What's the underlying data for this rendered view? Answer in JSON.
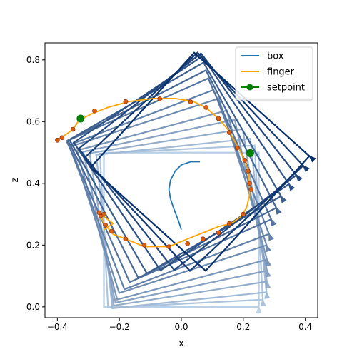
{
  "chart_data": {
    "type": "line",
    "xlabel": "x",
    "ylabel": "z",
    "xlim": [
      -0.44,
      0.44
    ],
    "ylim": [
      -0.035,
      0.855
    ],
    "xticks": [
      {
        "value": -0.4,
        "label": "−0.4"
      },
      {
        "value": -0.2,
        "label": "−0.2"
      },
      {
        "value": 0.0,
        "label": "0.0"
      },
      {
        "value": 0.2,
        "label": "0.2"
      },
      {
        "value": 0.4,
        "label": "0.4"
      }
    ],
    "yticks": [
      {
        "value": 0.0,
        "label": "0.0"
      },
      {
        "value": 0.2,
        "label": "0.2"
      },
      {
        "value": 0.4,
        "label": "0.4"
      },
      {
        "value": 0.6,
        "label": "0.6"
      },
      {
        "value": 0.8,
        "label": "0.8"
      }
    ],
    "grid": false,
    "legend_position": "upper right",
    "legend": [
      {
        "label": "box",
        "color": "#1f77b4",
        "style": "line"
      },
      {
        "label": "finger",
        "color": "#ffa500",
        "style": "line"
      },
      {
        "label": "setpoint",
        "color": "#008000",
        "style": "line-marker"
      }
    ],
    "colors": {
      "box_light": "#c6dbef",
      "box_dark": "#08306b",
      "box_center": "#1f77b4",
      "finger": "#ffa500",
      "finger_marker": "#d95f0e",
      "finger_marker_edge": "#8b2500",
      "setpoint": "#008000"
    },
    "series": [
      {
        "name": "box",
        "kind": "box_frames",
        "box_width": 0.5,
        "box_height": 0.5,
        "frames": [
          {
            "cx": 0.0,
            "cz": 0.25,
            "theta_deg": 0
          },
          {
            "cx": 0.0,
            "cz": 0.25,
            "theta_deg": 0
          },
          {
            "cx": 0.0,
            "cz": 0.26,
            "theta_deg": 3
          },
          {
            "cx": 0.0,
            "cz": 0.27,
            "theta_deg": 6
          },
          {
            "cx": -0.01,
            "cz": 0.29,
            "theta_deg": 9
          },
          {
            "cx": -0.02,
            "cz": 0.31,
            "theta_deg": 12
          },
          {
            "cx": -0.03,
            "cz": 0.33,
            "theta_deg": 15
          },
          {
            "cx": -0.04,
            "cz": 0.36,
            "theta_deg": 18
          },
          {
            "cx": -0.04,
            "cz": 0.38,
            "theta_deg": 21
          },
          {
            "cx": -0.04,
            "cz": 0.41,
            "theta_deg": 24
          },
          {
            "cx": -0.03,
            "cz": 0.43,
            "theta_deg": 27
          },
          {
            "cx": -0.02,
            "cz": 0.45,
            "theta_deg": 30
          },
          {
            "cx": 0.0,
            "cz": 0.465,
            "theta_deg": 34
          },
          {
            "cx": 0.02,
            "cz": 0.47,
            "theta_deg": 38
          },
          {
            "cx": 0.04,
            "cz": 0.47,
            "theta_deg": 43
          },
          {
            "cx": 0.06,
            "cz": 0.47,
            "theta_deg": 48
          }
        ],
        "center_path": [
          [
            0.0,
            0.25
          ],
          [
            -0.01,
            0.28
          ],
          [
            -0.025,
            0.32
          ],
          [
            -0.035,
            0.35
          ],
          [
            -0.04,
            0.38
          ],
          [
            -0.035,
            0.41
          ],
          [
            -0.02,
            0.44
          ],
          [
            0.0,
            0.46
          ],
          [
            0.03,
            0.47
          ],
          [
            0.06,
            0.47
          ]
        ]
      },
      {
        "name": "finger",
        "kind": "line",
        "points": [
          [
            -0.4,
            0.54
          ],
          [
            -0.37,
            0.56
          ],
          [
            -0.35,
            0.575
          ],
          [
            -0.33,
            0.605
          ],
          [
            -0.29,
            0.625
          ],
          [
            -0.24,
            0.645
          ],
          [
            -0.17,
            0.665
          ],
          [
            -0.09,
            0.675
          ],
          [
            -0.02,
            0.675
          ],
          [
            0.04,
            0.665
          ],
          [
            0.08,
            0.645
          ],
          [
            0.12,
            0.61
          ],
          [
            0.15,
            0.575
          ],
          [
            0.17,
            0.54
          ],
          [
            0.19,
            0.505
          ],
          [
            0.205,
            0.475
          ],
          [
            0.215,
            0.44
          ],
          [
            0.22,
            0.4
          ],
          [
            0.22,
            0.36
          ],
          [
            0.21,
            0.32
          ],
          [
            0.19,
            0.29
          ],
          [
            0.16,
            0.27
          ],
          [
            0.12,
            0.26
          ],
          [
            0.07,
            0.24
          ],
          [
            0.02,
            0.22
          ],
          [
            -0.04,
            0.195
          ],
          [
            -0.12,
            0.195
          ],
          [
            -0.18,
            0.22
          ],
          [
            -0.22,
            0.235
          ],
          [
            -0.25,
            0.27
          ],
          [
            -0.265,
            0.305
          ],
          [
            -0.24,
            0.285
          ],
          [
            -0.22,
            0.27
          ],
          [
            -0.25,
            0.25
          ]
        ],
        "markers": [
          [
            -0.4,
            0.54
          ],
          [
            -0.385,
            0.548
          ],
          [
            -0.35,
            0.575
          ],
          [
            -0.28,
            0.635
          ],
          [
            -0.18,
            0.665
          ],
          [
            -0.07,
            0.674
          ],
          [
            0.03,
            0.664
          ],
          [
            0.08,
            0.646
          ],
          [
            0.12,
            0.61
          ],
          [
            0.155,
            0.565
          ],
          [
            0.18,
            0.515
          ],
          [
            0.205,
            0.475
          ],
          [
            0.215,
            0.44
          ],
          [
            0.22,
            0.4
          ],
          [
            0.225,
            0.38
          ],
          [
            0.2,
            0.3
          ],
          [
            0.155,
            0.27
          ],
          [
            0.12,
            0.24
          ],
          [
            0.07,
            0.22
          ],
          [
            0.02,
            0.205
          ],
          [
            -0.04,
            0.195
          ],
          [
            -0.12,
            0.2
          ],
          [
            -0.18,
            0.22
          ],
          [
            -0.225,
            0.245
          ],
          [
            -0.245,
            0.265
          ],
          [
            -0.26,
            0.295
          ],
          [
            -0.265,
            0.305
          ],
          [
            -0.25,
            0.3
          ]
        ]
      },
      {
        "name": "setpoint",
        "kind": "points",
        "points": [
          [
            -0.325,
            0.61
          ],
          [
            0.222,
            0.498
          ]
        ]
      }
    ]
  }
}
